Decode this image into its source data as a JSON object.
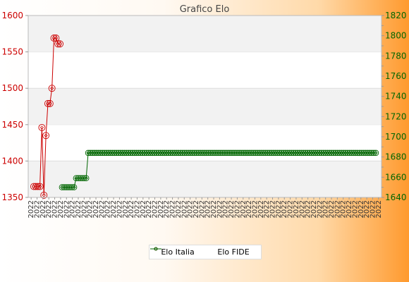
{
  "chart_data": {
    "type": "line",
    "title": "Grafico Elo",
    "grid": true,
    "legend_position": "bottom-center",
    "left_axis": {
      "ylim": [
        1350,
        1600
      ],
      "ticks": [
        1350,
        1400,
        1450,
        1500,
        1550,
        1600
      ],
      "color": "#cc0000"
    },
    "right_axis": {
      "ylim": [
        1640,
        1820
      ],
      "ticks": [
        1640,
        1660,
        1680,
        1700,
        1720,
        1740,
        1760,
        1780,
        1800,
        1820
      ],
      "color": "#006600"
    },
    "x_count": 60,
    "x_tick_text": "2022",
    "series": [
      {
        "name": "Elo Italia",
        "axis": "left",
        "color": "#cc0000",
        "x": [
          0,
          1,
          2,
          3,
          4,
          5,
          6,
          7,
          8,
          9,
          10,
          11,
          12,
          13
        ],
        "values": [
          1365,
          1365,
          1365,
          1365,
          1446,
          1353,
          1435,
          1479,
          1479,
          1500,
          1569,
          1569,
          1561,
          1561
        ]
      },
      {
        "name": "Elo FIDE",
        "axis": "right",
        "color": "#006600",
        "x": [
          14,
          15,
          16,
          17,
          18,
          19,
          20,
          21,
          22,
          23,
          24,
          25,
          26,
          27,
          28,
          29,
          30,
          31,
          32,
          33,
          34,
          35,
          36,
          37,
          38,
          39,
          40,
          41,
          42,
          43,
          44,
          45,
          46,
          47,
          48,
          49,
          50,
          51,
          52,
          53,
          54,
          55,
          56,
          57,
          58,
          59,
          60,
          61,
          62,
          63,
          64,
          65,
          66,
          67,
          68,
          69,
          70,
          71,
          72,
          73,
          74,
          75,
          76,
          77,
          78,
          79,
          80,
          81,
          82,
          83,
          84,
          85,
          86,
          87,
          88,
          89,
          90,
          91,
          92,
          93,
          94,
          95,
          96,
          97,
          98,
          99,
          100,
          101,
          102,
          103,
          104,
          105,
          106,
          107,
          108,
          109,
          110,
          111,
          112,
          113,
          114,
          115,
          116,
          117,
          118,
          119,
          120,
          121,
          122,
          123,
          124,
          125,
          126,
          127,
          128,
          129,
          130,
          131,
          132,
          133,
          134,
          135,
          136,
          137,
          138,
          139,
          140,
          141,
          142,
          143,
          144,
          145,
          146,
          147,
          148,
          149,
          150,
          151,
          152,
          153,
          154,
          155,
          156,
          157,
          158,
          159,
          160,
          161,
          162,
          163,
          164,
          165,
          166,
          167,
          168,
          169,
          170
        ],
        "values": [
          1650,
          1650,
          1650,
          1650,
          1650,
          1650,
          1650,
          1659,
          1659,
          1659,
          1659,
          1659,
          1659,
          1684,
          1684,
          1684,
          1684,
          1684,
          1684,
          1684,
          1684,
          1684,
          1684,
          1684,
          1684,
          1684,
          1684,
          1684,
          1684,
          1684,
          1684,
          1684,
          1684,
          1684,
          1684,
          1684,
          1684,
          1684,
          1684,
          1684,
          1684,
          1684,
          1684,
          1684,
          1684,
          1684,
          1684,
          1684,
          1684,
          1684,
          1684,
          1684,
          1684,
          1684,
          1684,
          1684,
          1684,
          1684,
          1684,
          1684,
          1684,
          1684,
          1684,
          1684,
          1684,
          1684,
          1684,
          1684,
          1684,
          1684,
          1684,
          1684,
          1684,
          1684,
          1684,
          1684,
          1684,
          1684,
          1684,
          1684,
          1684,
          1684,
          1684,
          1684,
          1684,
          1684,
          1684,
          1684,
          1684,
          1684,
          1684,
          1684,
          1684,
          1684,
          1684,
          1684,
          1684,
          1684,
          1684,
          1684,
          1684,
          1684,
          1684,
          1684,
          1684,
          1684,
          1684,
          1684,
          1684,
          1684,
          1684,
          1684,
          1684,
          1684,
          1684,
          1684,
          1684,
          1684,
          1684,
          1684,
          1684,
          1684,
          1684,
          1684,
          1684,
          1684,
          1684,
          1684,
          1684,
          1684,
          1684,
          1684,
          1684,
          1684,
          1684,
          1684,
          1684,
          1684,
          1684,
          1684,
          1684,
          1684,
          1684,
          1684,
          1684,
          1684,
          1684,
          1684,
          1684,
          1684,
          1684,
          1684,
          1684,
          1684,
          1684,
          1684,
          1684
        ]
      }
    ]
  },
  "legend": {
    "items": [
      {
        "label": "Elo Italia",
        "color": "#cc0000"
      },
      {
        "label": "Elo FIDE",
        "color": "#006600"
      }
    ]
  }
}
